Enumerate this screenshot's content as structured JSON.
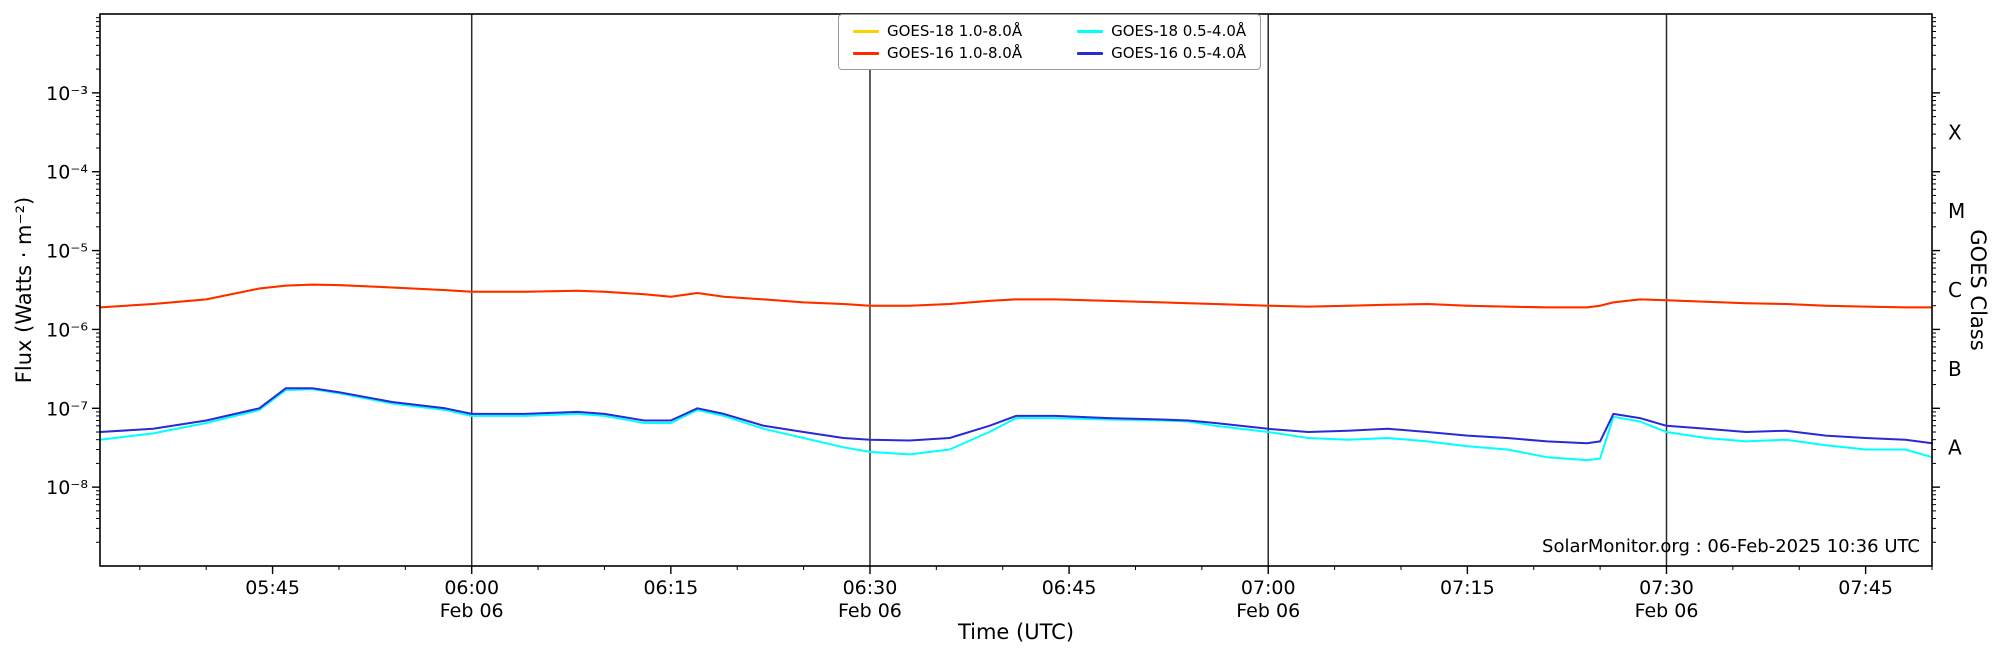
{
  "colors": {
    "background": "#ffffff",
    "axis": "#000000",
    "date_line": "#2b2b2b",
    "tick_label": "#000000"
  },
  "chart_data": {
    "type": "line",
    "title": "",
    "xlabel": "Time (UTC)",
    "ylabel": "Flux (Watts · m⁻²)",
    "ylabel_right": "GOES Class",
    "annotation": "SolarMonitor.org : 06-Feb-2025 10:36 UTC",
    "x_unit": "minutes since 05:30 UTC",
    "x_range_minutes": [
      2,
      140
    ],
    "y_range": [
      1e-09,
      0.01
    ],
    "y_scale": "log",
    "grid": "off",
    "legend_position": "top-center",
    "x_ticks": [
      {
        "t": 15,
        "label": "05:45"
      },
      {
        "t": 30,
        "label": "06:00"
      },
      {
        "t": 45,
        "label": "06:15"
      },
      {
        "t": 60,
        "label": "06:30"
      },
      {
        "t": 75,
        "label": "06:45"
      },
      {
        "t": 90,
        "label": "07:00"
      },
      {
        "t": 105,
        "label": "07:15"
      },
      {
        "t": 120,
        "label": "07:30"
      },
      {
        "t": 135,
        "label": "07:45"
      }
    ],
    "x_minor_step_minutes": 5,
    "date_lines": [
      {
        "t": 30,
        "label": "Feb 06"
      },
      {
        "t": 60,
        "label": "Feb 06"
      },
      {
        "t": 90,
        "label": "Feb 06"
      },
      {
        "t": 120,
        "label": "Feb 06"
      }
    ],
    "y_ticks": [
      {
        "value": 0.001,
        "label": "10⁻³"
      },
      {
        "value": 0.0001,
        "label": "10⁻⁴"
      },
      {
        "value": 1e-05,
        "label": "10⁻⁵"
      },
      {
        "value": 1e-06,
        "label": "10⁻⁶"
      },
      {
        "value": 1e-07,
        "label": "10⁻⁷"
      },
      {
        "value": 1e-08,
        "label": "10⁻⁸"
      }
    ],
    "goes_classes": [
      {
        "label": "X",
        "value": 0.000316
      },
      {
        "label": "M",
        "value": 3.16e-05
      },
      {
        "label": "C",
        "value": 3.16e-06
      },
      {
        "label": "B",
        "value": 3.16e-07
      },
      {
        "label": "A",
        "value": 3.16e-08
      }
    ],
    "t_minutes": [
      2,
      6,
      10,
      14,
      16,
      18,
      20,
      24,
      28,
      30,
      34,
      38,
      40,
      43,
      45,
      47,
      49,
      52,
      55,
      58,
      60,
      63,
      66,
      69,
      71,
      74,
      78,
      82,
      84,
      86,
      90,
      93,
      96,
      99,
      102,
      105,
      108,
      111,
      114,
      115,
      116,
      118,
      120,
      123,
      126,
      129,
      132,
      135,
      138,
      140
    ],
    "series": [
      {
        "name": "GOES-18 1.0-8.0Å",
        "color": "#ffcf00",
        "values": [
          1.9e-06,
          2.1e-06,
          2.4e-06,
          3.3e-06,
          3.6e-06,
          3.7e-06,
          3.65e-06,
          3.4e-06,
          3.15e-06,
          3e-06,
          3e-06,
          3.1e-06,
          3e-06,
          2.8e-06,
          2.6e-06,
          2.9e-06,
          2.6e-06,
          2.4e-06,
          2.2e-06,
          2.1e-06,
          2e-06,
          2e-06,
          2.1e-06,
          2.3e-06,
          2.4e-06,
          2.4e-06,
          2.3e-06,
          2.2e-06,
          2.15e-06,
          2.1e-06,
          2e-06,
          1.95e-06,
          2e-06,
          2.05e-06,
          2.1e-06,
          2e-06,
          1.95e-06,
          1.9e-06,
          1.9e-06,
          2e-06,
          2.2e-06,
          2.4e-06,
          2.35e-06,
          2.25e-06,
          2.15e-06,
          2.1e-06,
          2e-06,
          1.95e-06,
          1.9e-06,
          1.9e-06
        ]
      },
      {
        "name": "GOES-18 0.5-4.0Å",
        "color": "#00ffff",
        "values": [
          4e-08,
          4.8e-08,
          6.5e-08,
          9.5e-08,
          1.7e-07,
          1.75e-07,
          1.55e-07,
          1.15e-07,
          9.5e-08,
          8e-08,
          8e-08,
          8.5e-08,
          8e-08,
          6.5e-08,
          6.5e-08,
          9.5e-08,
          8e-08,
          5.5e-08,
          4.2e-08,
          3.2e-08,
          2.8e-08,
          2.6e-08,
          3e-08,
          5e-08,
          7.5e-08,
          7.5e-08,
          7.2e-08,
          7e-08,
          6.8e-08,
          6e-08,
          5e-08,
          4.2e-08,
          4e-08,
          4.2e-08,
          3.8e-08,
          3.3e-08,
          3e-08,
          2.4e-08,
          2.2e-08,
          2.3e-08,
          7.8e-08,
          6.8e-08,
          5e-08,
          4.2e-08,
          3.8e-08,
          4e-08,
          3.4e-08,
          3e-08,
          3e-08,
          2.4e-08
        ]
      },
      {
        "name": "GOES-16 1.0-8.0Å",
        "color": "#ff2a00",
        "values": [
          1.9e-06,
          2.1e-06,
          2.4e-06,
          3.3e-06,
          3.6e-06,
          3.7e-06,
          3.65e-06,
          3.4e-06,
          3.15e-06,
          3e-06,
          3e-06,
          3.1e-06,
          3e-06,
          2.8e-06,
          2.6e-06,
          2.9e-06,
          2.6e-06,
          2.4e-06,
          2.2e-06,
          2.1e-06,
          2e-06,
          2e-06,
          2.1e-06,
          2.3e-06,
          2.4e-06,
          2.4e-06,
          2.3e-06,
          2.2e-06,
          2.15e-06,
          2.1e-06,
          2e-06,
          1.95e-06,
          2e-06,
          2.05e-06,
          2.1e-06,
          2e-06,
          1.95e-06,
          1.9e-06,
          1.9e-06,
          2e-06,
          2.2e-06,
          2.4e-06,
          2.35e-06,
          2.25e-06,
          2.15e-06,
          2.1e-06,
          2e-06,
          1.95e-06,
          1.9e-06,
          1.9e-06
        ]
      },
      {
        "name": "GOES-16 0.5-4.0Å",
        "color": "#2a2ad4",
        "values": [
          5e-08,
          5.5e-08,
          7e-08,
          1e-07,
          1.8e-07,
          1.8e-07,
          1.6e-07,
          1.2e-07,
          1e-07,
          8.5e-08,
          8.5e-08,
          9e-08,
          8.5e-08,
          7e-08,
          7e-08,
          1e-07,
          8.5e-08,
          6e-08,
          5e-08,
          4.2e-08,
          4e-08,
          3.9e-08,
          4.2e-08,
          6e-08,
          8e-08,
          8e-08,
          7.5e-08,
          7.2e-08,
          7e-08,
          6.5e-08,
          5.5e-08,
          5e-08,
          5.2e-08,
          5.5e-08,
          5e-08,
          4.5e-08,
          4.2e-08,
          3.8e-08,
          3.6e-08,
          3.8e-08,
          8.5e-08,
          7.5e-08,
          6e-08,
          5.5e-08,
          5e-08,
          5.2e-08,
          4.5e-08,
          4.2e-08,
          4e-08,
          3.6e-08
        ]
      }
    ]
  }
}
